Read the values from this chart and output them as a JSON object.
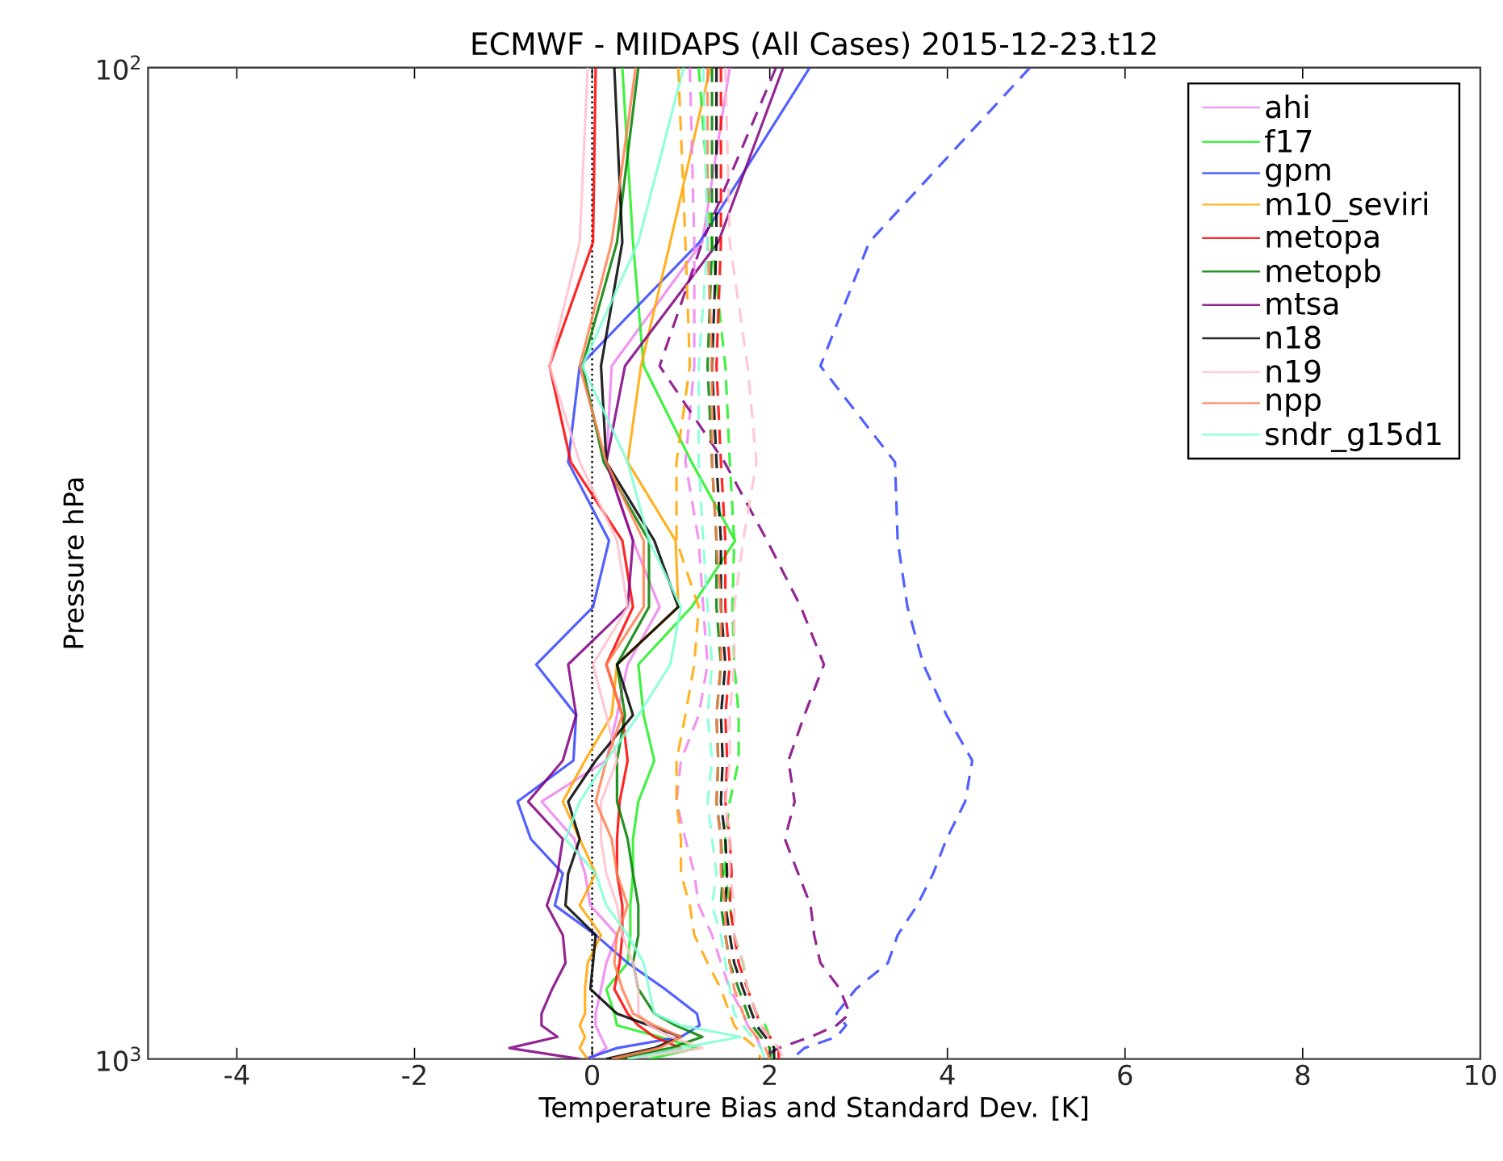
{
  "chart_data": {
    "type": "line",
    "title": "ECMWF - MIIDAPS (All Cases) 2015-12-23.t12",
    "xlabel": "Temperature Bias and Standard Dev. [K]",
    "ylabel": "Pressure hPa",
    "xlim": [
      -5,
      10
    ],
    "xticks": [
      -4,
      -2,
      0,
      2,
      4,
      6,
      8,
      10
    ],
    "ylim": [
      1000,
      100
    ],
    "yticks": [
      {
        "value": 100,
        "label": "10$^{2}$"
      },
      {
        "value": 1000,
        "label": "10$^{3}$"
      }
    ],
    "log": "y",
    "legend": "top right",
    "line_style": "solid",
    "ref_lines": [
      {
        "axis": "x",
        "value": 0,
        "color": "#000000",
        "line_style": "dotted"
      }
    ],
    "series": [
      {
        "name": "ahi",
        "color": "#ee82ee",
        "x": [
          1.55,
          1.24,
          0.22,
          0.16,
          0.46,
          0.76,
          0.4,
          0.28,
          0.16,
          -0.57,
          -0.2,
          -0.08,
          -0.02,
          0.28,
          0.16,
          0.1,
          0.04,
          0.04,
          0.1,
          0.16,
          -0.02
        ],
        "values": [
          100,
          150,
          200,
          250,
          300,
          350,
          400,
          450,
          500,
          550,
          600,
          650,
          700,
          750,
          800,
          850,
          900,
          925,
          950,
          975,
          1000
        ]
      },
      {
        "name": "f17",
        "color": "#22ee22",
        "x": [
          0.34,
          0.46,
          0.58,
          1.12,
          1.61,
          1.12,
          0.52,
          0.58,
          0.7,
          0.52,
          0.46,
          0.46,
          0.43,
          0.43,
          0.4,
          0.16,
          0.25,
          0.28,
          0.76,
          1.18,
          0.64
        ],
        "values": [
          100,
          150,
          200,
          250,
          300,
          350,
          400,
          450,
          500,
          550,
          600,
          650,
          700,
          750,
          800,
          850,
          900,
          925,
          950,
          975,
          1000
        ]
      },
      {
        "name": "gpm",
        "color": "#3344ff",
        "x": [
          2.45,
          1.21,
          -0.14,
          -0.27,
          0.19,
          0.01,
          -0.63,
          -0.18,
          -0.21,
          -0.84,
          -0.69,
          -0.33,
          -0.42,
          0.04,
          0.4,
          0.82,
          1.18,
          1.21,
          1.0,
          0.28,
          -0.08
        ],
        "values": [
          100,
          150,
          200,
          250,
          300,
          350,
          400,
          450,
          500,
          550,
          600,
          650,
          700,
          750,
          800,
          850,
          900,
          925,
          950,
          975,
          1000
        ]
      },
      {
        "name": "m10_seviri",
        "color": "#ffa500",
        "x": [
          1.33,
          0.88,
          0.55,
          0.4,
          0.94,
          0.97,
          0.28,
          0.22,
          -0.08,
          -0.33,
          -0.14,
          0.04,
          -0.14,
          0.1,
          -0.05,
          -0.08,
          -0.08,
          -0.14,
          -0.08,
          -0.14,
          -0.05
        ],
        "values": [
          100,
          150,
          200,
          250,
          300,
          350,
          400,
          450,
          500,
          550,
          600,
          650,
          700,
          750,
          800,
          850,
          900,
          925,
          950,
          975,
          1000
        ]
      },
      {
        "name": "metopa",
        "color": "#ff0000",
        "x": [
          0.04,
          0.01,
          -0.48,
          -0.24,
          0.34,
          0.46,
          0.16,
          0.34,
          0.4,
          0.31,
          0.28,
          0.28,
          0.34,
          0.34,
          0.31,
          0.25,
          0.4,
          0.52,
          0.7,
          1.0,
          0.28
        ],
        "values": [
          100,
          150,
          200,
          250,
          300,
          350,
          400,
          450,
          500,
          550,
          600,
          650,
          700,
          750,
          800,
          850,
          900,
          925,
          950,
          975,
          1000
        ]
      },
      {
        "name": "metopb",
        "color": "#008000",
        "x": [
          0.52,
          0.28,
          -0.11,
          0.13,
          0.64,
          0.64,
          0.28,
          0.37,
          0.28,
          0.28,
          0.4,
          0.46,
          0.52,
          0.52,
          0.46,
          0.52,
          0.7,
          0.94,
          1.24,
          0.88,
          0.28
        ],
        "values": [
          100,
          150,
          200,
          250,
          300,
          350,
          400,
          450,
          500,
          550,
          600,
          650,
          700,
          750,
          800,
          850,
          900,
          925,
          950,
          975,
          1000
        ]
      },
      {
        "name": "mtsa",
        "color": "#800080",
        "x": [
          2.15,
          1.42,
          0.37,
          0.16,
          0.46,
          0.4,
          -0.27,
          -0.18,
          -0.33,
          -0.72,
          -0.33,
          -0.39,
          -0.51,
          -0.33,
          -0.3,
          -0.45,
          -0.57,
          -0.57,
          -0.39,
          -0.93,
          -0.14
        ],
        "values": [
          100,
          150,
          200,
          250,
          300,
          350,
          400,
          450,
          500,
          550,
          600,
          650,
          700,
          750,
          800,
          850,
          900,
          925,
          950,
          975,
          1000
        ]
      },
      {
        "name": "n18",
        "color": "#000000",
        "x": [
          0.25,
          0.34,
          0.1,
          0.16,
          0.7,
          0.97,
          0.28,
          0.46,
          0.04,
          -0.27,
          -0.14,
          -0.27,
          -0.3,
          0.04,
          0.01,
          -0.02,
          0.28,
          0.64,
          1.0,
          0.7,
          0.16
        ],
        "values": [
          100,
          150,
          200,
          250,
          300,
          350,
          400,
          450,
          500,
          550,
          600,
          650,
          700,
          750,
          800,
          850,
          900,
          925,
          950,
          975,
          1000
        ]
      },
      {
        "name": "n19",
        "color": "#ffc0cb",
        "x": [
          -0.05,
          -0.14,
          -0.48,
          -0.14,
          0.28,
          0.4,
          0.01,
          0.16,
          0.28,
          0.1,
          0.1,
          0.16,
          0.28,
          0.34,
          0.46,
          0.52,
          0.52,
          0.64,
          0.88,
          1.24,
          0.4
        ],
        "values": [
          100,
          150,
          200,
          250,
          300,
          350,
          400,
          450,
          500,
          550,
          600,
          650,
          700,
          750,
          800,
          850,
          900,
          925,
          950,
          975,
          1000
        ]
      },
      {
        "name": "npp",
        "color": "#ff7f50",
        "x": [
          0.49,
          0.22,
          -0.14,
          0.16,
          0.58,
          0.58,
          0.16,
          0.34,
          0.16,
          0.04,
          0.22,
          0.28,
          0.4,
          0.28,
          0.25,
          0.34,
          0.46,
          0.7,
          1.0,
          0.76,
          0.22
        ],
        "values": [
          100,
          150,
          200,
          250,
          300,
          350,
          400,
          450,
          500,
          550,
          600,
          650,
          700,
          750,
          800,
          850,
          900,
          925,
          950,
          975,
          1000
        ]
      },
      {
        "name": "sndr_g15d1",
        "color": "#7fffd4",
        "x": [
          1.03,
          0.52,
          -0.11,
          0.4,
          0.64,
          1.0,
          0.88,
          0.52,
          0.16,
          -0.14,
          -0.3,
          0.04,
          0.16,
          0.4,
          0.58,
          0.64,
          0.7,
          1.0,
          1.67,
          1.0,
          0.4
        ],
        "values": [
          100,
          150,
          200,
          250,
          300,
          350,
          400,
          450,
          500,
          550,
          600,
          650,
          700,
          750,
          800,
          850,
          900,
          925,
          950,
          975,
          1000
        ]
      },
      {
        "color": "#ee82ee",
        "line_style": "dashed",
        "x": [
          1.1,
          1.15,
          1.15,
          1.05,
          1.2,
          1.25,
          1.3,
          1.2,
          1.0,
          0.95,
          1.05,
          1.15,
          1.2,
          1.35,
          1.45,
          1.55,
          1.7,
          1.75,
          1.85,
          1.9,
          2.0
        ],
        "values": [
          100,
          150,
          200,
          250,
          300,
          350,
          400,
          450,
          500,
          550,
          600,
          650,
          700,
          750,
          800,
          850,
          900,
          925,
          950,
          975,
          1000
        ]
      },
      {
        "color": "#22ee22",
        "line_style": "dashed",
        "x": [
          1.2,
          1.35,
          1.5,
          1.55,
          1.6,
          1.58,
          1.6,
          1.65,
          1.65,
          1.55,
          1.5,
          1.5,
          1.55,
          1.6,
          1.7,
          1.75,
          1.85,
          1.95,
          2.0,
          2.05,
          2.0
        ],
        "values": [
          100,
          150,
          200,
          250,
          300,
          350,
          400,
          450,
          500,
          550,
          600,
          650,
          700,
          750,
          800,
          850,
          900,
          925,
          950,
          975,
          1000
        ]
      },
      {
        "color": "#3344ff",
        "line_style": "dashed",
        "x": [
          4.93,
          3.12,
          2.57,
          3.41,
          3.44,
          3.55,
          3.73,
          3.99,
          4.28,
          4.2,
          3.99,
          3.84,
          3.66,
          3.44,
          3.33,
          2.97,
          2.75,
          2.86,
          2.75,
          2.39,
          2.25
        ],
        "values": [
          100,
          150,
          200,
          250,
          300,
          350,
          400,
          450,
          500,
          550,
          600,
          650,
          700,
          750,
          800,
          850,
          900,
          925,
          950,
          975,
          1000
        ]
      },
      {
        "color": "#ffa500",
        "line_style": "dashed",
        "x": [
          0.97,
          1.05,
          1.1,
          0.95,
          0.95,
          1.2,
          1.15,
          1.05,
          0.95,
          0.95,
          1.0,
          1.0,
          1.1,
          1.15,
          1.3,
          1.45,
          1.55,
          1.6,
          1.7,
          1.85,
          1.9
        ],
        "values": [
          100,
          150,
          200,
          250,
          300,
          350,
          400,
          450,
          500,
          550,
          600,
          650,
          700,
          750,
          800,
          850,
          900,
          925,
          950,
          975,
          1000
        ]
      },
      {
        "color": "#ff0000",
        "line_style": "dashed",
        "x": [
          1.45,
          1.45,
          1.4,
          1.45,
          1.5,
          1.5,
          1.55,
          1.5,
          1.52,
          1.5,
          1.55,
          1.57,
          1.55,
          1.6,
          1.65,
          1.75,
          1.85,
          1.9,
          2.0,
          2.1,
          2.1
        ],
        "values": [
          100,
          150,
          200,
          250,
          300,
          350,
          400,
          450,
          500,
          550,
          600,
          650,
          700,
          750,
          800,
          850,
          900,
          925,
          950,
          975,
          1000
        ]
      },
      {
        "color": "#008000",
        "line_style": "dashed",
        "x": [
          1.35,
          1.35,
          1.3,
          1.35,
          1.4,
          1.4,
          1.45,
          1.4,
          1.42,
          1.4,
          1.45,
          1.47,
          1.45,
          1.5,
          1.55,
          1.65,
          1.75,
          1.8,
          1.9,
          2.0,
          2.0
        ],
        "values": [
          100,
          150,
          200,
          250,
          300,
          350,
          400,
          450,
          500,
          550,
          600,
          650,
          700,
          750,
          800,
          850,
          900,
          925,
          950,
          975,
          1000
        ]
      },
      {
        "color": "#800080",
        "line_style": "dashed",
        "x": [
          2.07,
          1.24,
          0.76,
          1.49,
          1.97,
          2.35,
          2.61,
          2.39,
          2.21,
          2.28,
          2.17,
          2.32,
          2.46,
          2.5,
          2.57,
          2.79,
          2.9,
          2.75,
          2.46,
          2.1,
          1.88
        ],
        "values": [
          100,
          150,
          200,
          250,
          300,
          350,
          400,
          450,
          500,
          550,
          600,
          650,
          700,
          750,
          800,
          850,
          900,
          925,
          950,
          975,
          1000
        ]
      },
      {
        "color": "#000000",
        "line_style": "dashed",
        "x": [
          1.4,
          1.4,
          1.35,
          1.4,
          1.45,
          1.45,
          1.5,
          1.45,
          1.47,
          1.45,
          1.5,
          1.52,
          1.5,
          1.55,
          1.6,
          1.7,
          1.8,
          1.85,
          1.95,
          2.05,
          2.05
        ],
        "values": [
          100,
          150,
          200,
          250,
          300,
          350,
          400,
          450,
          500,
          550,
          600,
          650,
          700,
          750,
          800,
          850,
          900,
          925,
          950,
          975,
          1000
        ]
      },
      {
        "color": "#ffc0cb",
        "line_style": "dashed",
        "x": [
          1.5,
          1.55,
          1.75,
          1.85,
          1.7,
          1.6,
          1.6,
          1.55,
          1.55,
          1.5,
          1.55,
          1.55,
          1.6,
          1.6,
          1.7,
          1.75,
          1.85,
          1.9,
          2.0,
          2.1,
          2.15
        ],
        "values": [
          100,
          150,
          200,
          250,
          300,
          350,
          400,
          450,
          500,
          550,
          600,
          650,
          700,
          750,
          800,
          850,
          900,
          925,
          950,
          975,
          1000
        ]
      },
      {
        "color": "#ff7f50",
        "line_style": "dashed",
        "x": [
          1.3,
          1.3,
          1.35,
          1.35,
          1.4,
          1.45,
          1.45,
          1.4,
          1.42,
          1.4,
          1.45,
          1.45,
          1.5,
          1.5,
          1.55,
          1.6,
          1.7,
          1.75,
          1.85,
          1.95,
          2.0
        ],
        "values": [
          100,
          150,
          200,
          250,
          300,
          350,
          400,
          450,
          500,
          550,
          600,
          650,
          700,
          750,
          800,
          850,
          900,
          925,
          950,
          975,
          1000
        ]
      },
      {
        "color": "#7fffd4",
        "line_style": "dashed",
        "x": [
          1.25,
          1.3,
          1.2,
          1.2,
          1.25,
          1.3,
          1.35,
          1.3,
          1.35,
          1.3,
          1.35,
          1.4,
          1.35,
          1.45,
          1.5,
          1.55,
          1.6,
          1.7,
          1.8,
          1.9,
          1.95
        ],
        "values": [
          100,
          150,
          200,
          250,
          300,
          350,
          400,
          450,
          500,
          550,
          600,
          650,
          700,
          750,
          800,
          850,
          900,
          925,
          950,
          975,
          1000
        ]
      }
    ]
  }
}
